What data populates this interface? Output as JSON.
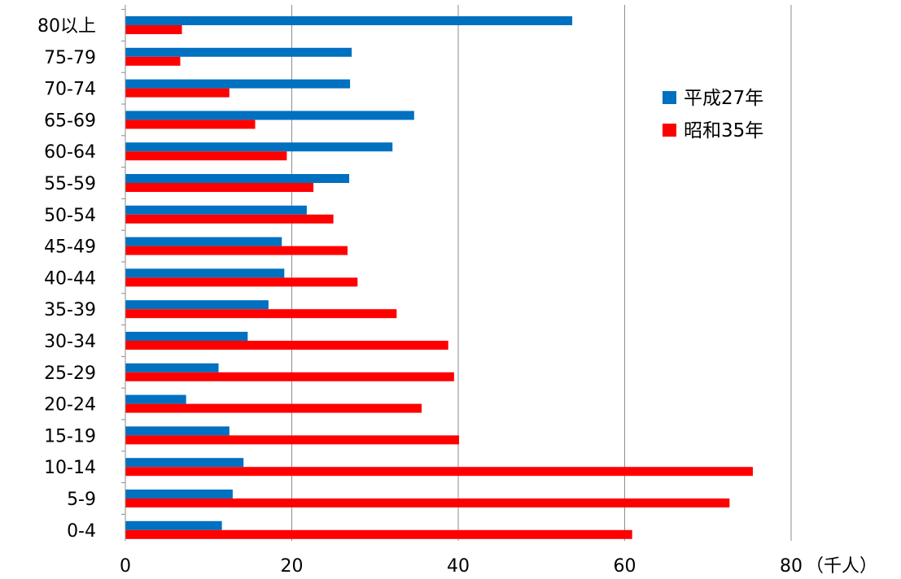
{
  "chart_data": {
    "type": "bar",
    "orientation": "horizontal",
    "categories": [
      "80以上",
      "75-79",
      "70-74",
      "65-69",
      "60-64",
      "55-59",
      "50-54",
      "45-49",
      "40-44",
      "35-39",
      "30-34",
      "25-29",
      "20-24",
      "15-19",
      "10-14",
      "5-9",
      "0-4"
    ],
    "series": [
      {
        "name": "平成27年",
        "color": "#0070c0",
        "values": [
          53.7,
          27.2,
          27.0,
          34.7,
          32.1,
          26.9,
          21.8,
          18.8,
          19.1,
          17.2,
          14.7,
          11.2,
          7.3,
          12.5,
          14.2,
          12.9,
          11.6
        ]
      },
      {
        "name": "昭和35年",
        "color": "#ff0000",
        "values": [
          6.8,
          6.6,
          12.5,
          15.6,
          19.4,
          22.6,
          25.0,
          26.7,
          27.9,
          32.6,
          38.8,
          39.5,
          35.6,
          40.1,
          75.4,
          72.6,
          60.9
        ]
      }
    ],
    "x_ticks": [
      "0",
      "20",
      "40",
      "60",
      "80"
    ],
    "x_tick_values": [
      0,
      20,
      40,
      60,
      80
    ],
    "xlim": [
      0,
      80
    ],
    "unit_label": "（千人）",
    "grid": "vertical",
    "legend_position": "right"
  }
}
